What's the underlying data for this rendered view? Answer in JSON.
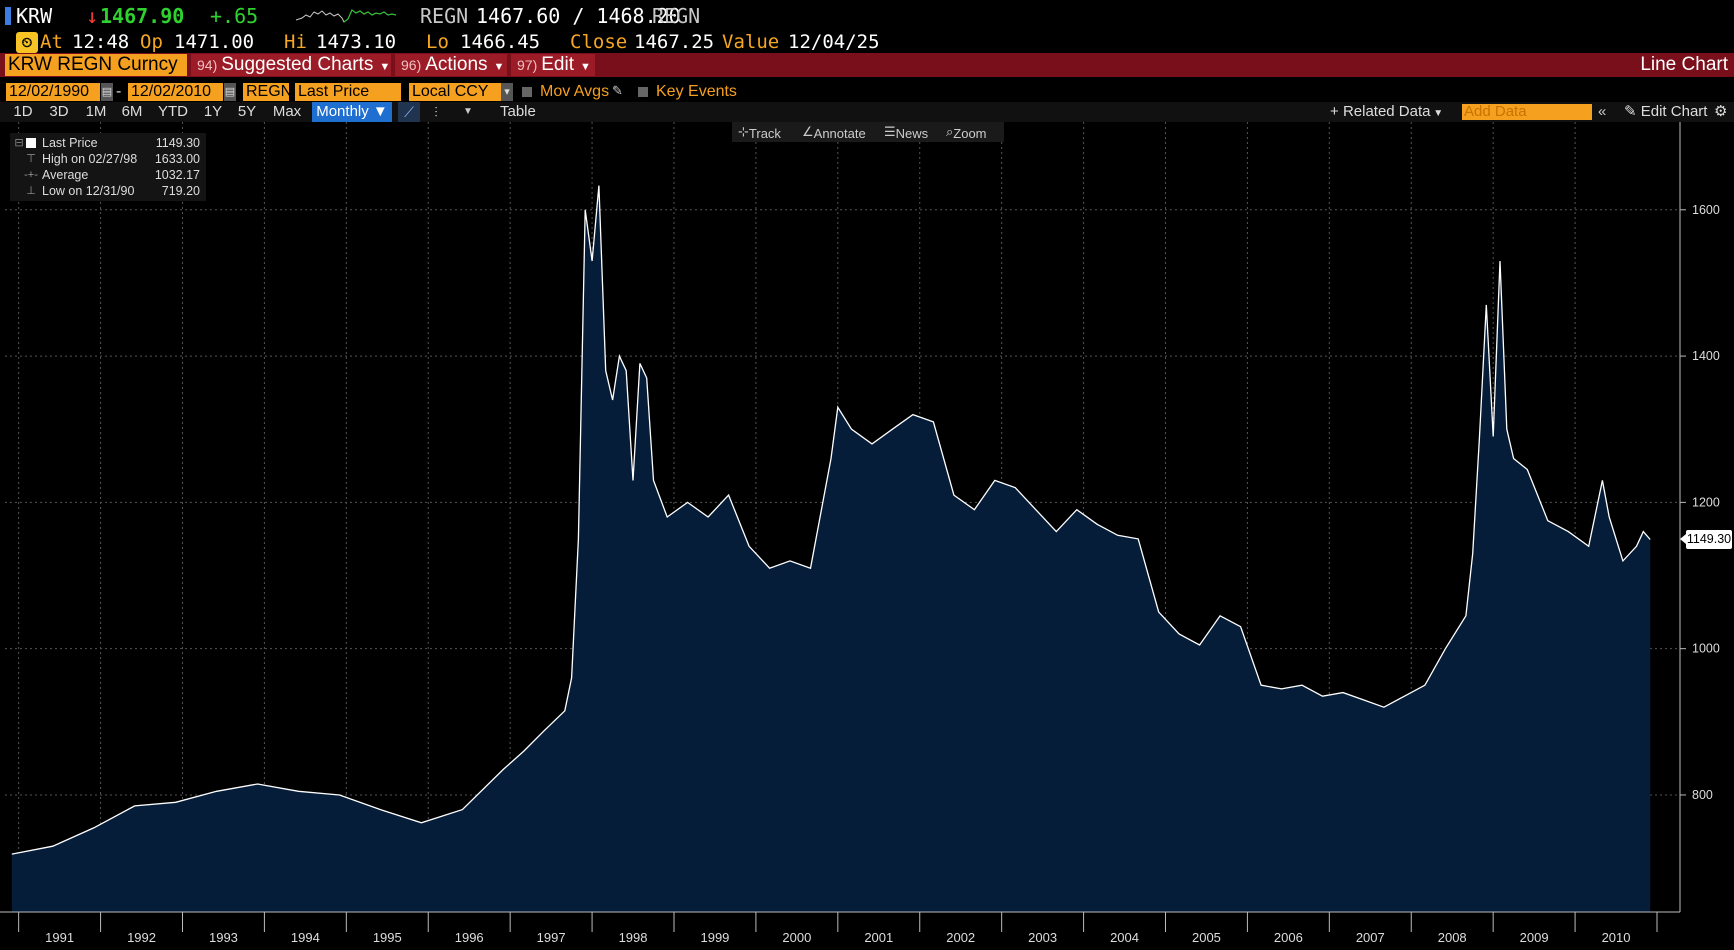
{
  "quote": {
    "ticker": "KRW",
    "arrow": "↓",
    "last": "1467.90",
    "change": "+.65",
    "market": "REGN",
    "bid_ask": "1467.60 / 1468.20",
    "market2": "REGN",
    "at_label": "At",
    "time": "12:48",
    "op_label": "Op",
    "open": "1471.00",
    "hi_label": "Hi",
    "high": "1473.10",
    "lo_label": "Lo",
    "low": "1466.45",
    "close_label": "Close",
    "close": "1467.25",
    "value_label": "Value",
    "value_date": "12/04/25"
  },
  "menu": {
    "security": "KRW REGN Curncy",
    "items": [
      {
        "num": "94)",
        "label": "Suggested Charts"
      },
      {
        "num": "96)",
        "label": "Actions"
      },
      {
        "num": "97)",
        "label": "Edit"
      }
    ],
    "chart_name": "Line Chart"
  },
  "controls": {
    "start_date": "12/02/1990",
    "end_date": "12/02/2010",
    "source": "REGN",
    "field": "Last Price",
    "currency": "Local CCY",
    "mov_avgs": "Mov Avgs",
    "key_events": "Key Events"
  },
  "range": {
    "buttons": [
      "1D",
      "3D",
      "1M",
      "6M",
      "YTD",
      "1Y",
      "5Y",
      "Max"
    ],
    "period": "Monthly ▼",
    "table": "Table",
    "related": "Related Data",
    "add_data": "Add Data",
    "edit_chart": "Edit Chart"
  },
  "tools": {
    "track": "Track",
    "annotate": "Annotate",
    "news": "News",
    "zoom": "Zoom"
  },
  "legend": {
    "last_label": "Last Price",
    "last_value": "1149.30",
    "high_label": "High on 02/27/98",
    "high_value": "1633.00",
    "avg_label": "Average",
    "avg_value": "1032.17",
    "low_label": "Low on 12/31/90",
    "low_value": "719.20"
  },
  "chart_data": {
    "type": "area",
    "x_labels": [
      "1991",
      "1992",
      "1993",
      "1994",
      "1995",
      "1996",
      "1997",
      "1998",
      "1999",
      "2000",
      "2001",
      "2002",
      "2003",
      "2004",
      "2005",
      "2006",
      "2007",
      "2008",
      "2009",
      "2010"
    ],
    "y_ticks": [
      800,
      1000,
      1200,
      1400,
      1600
    ],
    "ylim": [
      640,
      1720
    ],
    "last_badge": "1149.30",
    "colors": {
      "line": "#ffffff",
      "fill": "#061d3a",
      "grid": "#555555",
      "text": "#dddddd"
    },
    "grid": true,
    "x": [
      "1990-12",
      "1991-06",
      "1991-12",
      "1992-06",
      "1992-12",
      "1993-06",
      "1993-12",
      "1994-06",
      "1994-12",
      "1995-06",
      "1995-12",
      "1996-06",
      "1996-12",
      "1997-03",
      "1997-06",
      "1997-09",
      "1997-10",
      "1997-11",
      "1997-12",
      "1998-01",
      "1998-02",
      "1998-03",
      "1998-04",
      "1998-05",
      "1998-06",
      "1998-07",
      "1998-08",
      "1998-09",
      "1998-10",
      "1998-12",
      "1999-03",
      "1999-06",
      "1999-09",
      "1999-12",
      "2000-03",
      "2000-06",
      "2000-09",
      "2000-12",
      "2001-01",
      "2001-03",
      "2001-06",
      "2001-09",
      "2001-12",
      "2002-03",
      "2002-06",
      "2002-09",
      "2002-12",
      "2003-03",
      "2003-06",
      "2003-09",
      "2003-12",
      "2004-03",
      "2004-06",
      "2004-09",
      "2004-12",
      "2005-03",
      "2005-06",
      "2005-09",
      "2005-12",
      "2006-03",
      "2006-06",
      "2006-09",
      "2006-12",
      "2007-03",
      "2007-06",
      "2007-09",
      "2007-12",
      "2008-03",
      "2008-06",
      "2008-09",
      "2008-10",
      "2008-11",
      "2008-12",
      "2009-01",
      "2009-02",
      "2009-03",
      "2009-04",
      "2009-06",
      "2009-09",
      "2009-12",
      "2010-03",
      "2010-05",
      "2010-06",
      "2010-08",
      "2010-10",
      "2010-11",
      "2010-12"
    ],
    "values": [
      719.2,
      730,
      755,
      785,
      790,
      805,
      815,
      805,
      800,
      780,
      762,
      780,
      835,
      860,
      888,
      915,
      960,
      1150,
      1600,
      1530,
      1633,
      1380,
      1340,
      1400,
      1380,
      1230,
      1390,
      1370,
      1230,
      1180,
      1200,
      1180,
      1210,
      1140,
      1110,
      1120,
      1110,
      1260,
      1330,
      1300,
      1280,
      1300,
      1320,
      1310,
      1210,
      1190,
      1230,
      1220,
      1190,
      1160,
      1190,
      1170,
      1155,
      1150,
      1050,
      1020,
      1005,
      1045,
      1030,
      950,
      945,
      950,
      935,
      940,
      930,
      920,
      935,
      950,
      1000,
      1045,
      1130,
      1290,
      1470,
      1290,
      1530,
      1300,
      1260,
      1245,
      1175,
      1160,
      1140,
      1230,
      1180,
      1120,
      1140,
      1160,
      1149.3
    ]
  }
}
